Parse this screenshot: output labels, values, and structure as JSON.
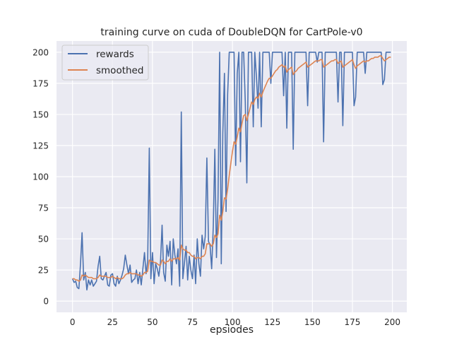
{
  "chart_data": {
    "type": "line",
    "title": "training curve on cuda of DoubleDQN for CartPole-v0",
    "xlabel": "epsiodes",
    "ylabel": "",
    "xlim": [
      -10,
      209
    ],
    "ylim": [
      -9,
      209
    ],
    "xticks": [
      0,
      25,
      50,
      75,
      100,
      125,
      150,
      175,
      200
    ],
    "yticks": [
      0,
      25,
      50,
      75,
      100,
      125,
      150,
      175,
      200
    ],
    "grid": true,
    "legend_position": "top-left",
    "colors": {
      "background": "#eaeaf2",
      "grid": "#ffffff",
      "rewards": "#4c72b0",
      "smoothed": "#dd8452"
    },
    "series": [
      {
        "name": "rewards",
        "values": [
          18,
          15,
          16,
          11,
          10,
          30,
          55,
          17,
          23,
          9,
          17,
          13,
          17,
          12,
          14,
          16,
          28,
          36,
          18,
          17,
          20,
          23,
          13,
          12,
          21,
          22,
          14,
          12,
          20,
          14,
          17,
          21,
          26,
          37,
          29,
          22,
          29,
          15,
          17,
          18,
          25,
          14,
          23,
          13,
          26,
          39,
          22,
          32,
          123,
          18,
          39,
          14,
          30,
          26,
          20,
          31,
          61,
          23,
          16,
          45,
          36,
          48,
          13,
          50,
          37,
          30,
          42,
          12,
          152,
          18,
          31,
          44,
          17,
          36,
          25,
          18,
          37,
          14,
          50,
          30,
          20,
          53,
          42,
          52,
          115,
          48,
          45,
          26,
          60,
          122,
          35,
          82,
          200,
          30,
          135,
          183,
          72,
          166,
          200,
          200,
          200,
          200,
          109,
          183,
          200,
          112,
          200,
          200,
          160,
          95,
          200,
          200,
          200,
          140,
          200,
          180,
          155,
          200,
          140,
          200,
          200,
          200,
          200,
          200,
          175,
          200,
          200,
          200,
          200,
          200,
          200,
          200,
          165,
          200,
          139,
          200,
          200,
          200,
          122,
          200,
          200,
          200,
          200,
          200,
          200,
          200,
          200,
          157,
          200,
          200,
          200,
          200,
          200,
          192,
          200,
          200,
          200,
          128,
          200,
          200,
          200,
          200,
          200,
          200,
          200,
          200,
          160,
          200,
          200,
          141,
          200,
          200,
          200,
          200,
          200,
          200,
          157,
          164,
          200,
          200,
          200,
          200,
          200,
          183,
          200,
          200,
          200,
          200,
          200,
          200,
          200,
          200,
          200,
          200,
          174,
          178,
          200,
          200,
          200,
          200
        ]
      },
      {
        "name": "smoothed",
        "values": [
          18,
          18,
          17,
          17,
          16,
          17,
          21,
          20,
          21,
          20,
          19,
          19,
          19,
          18,
          18,
          18,
          19,
          21,
          20,
          20,
          20,
          20,
          19,
          19,
          19,
          20,
          19,
          18,
          19,
          18,
          18,
          18,
          19,
          21,
          22,
          22,
          23,
          22,
          22,
          22,
          22,
          21,
          21,
          20,
          21,
          23,
          23,
          24,
          33,
          32,
          32,
          31,
          31,
          30,
          29,
          29,
          33,
          32,
          30,
          32,
          32,
          34,
          32,
          34,
          34,
          34,
          35,
          33,
          45,
          42,
          41,
          41,
          39,
          39,
          37,
          36,
          36,
          34,
          35,
          35,
          34,
          36,
          36,
          38,
          46,
          46,
          46,
          44,
          46,
          53,
          51,
          54,
          69,
          65,
          72,
          83,
          82,
          90,
          101,
          111,
          120,
          128,
          126,
          132,
          139,
          136,
          143,
          149,
          150,
          145,
          150,
          155,
          160,
          158,
          162,
          164,
          163,
          167,
          164,
          168,
          171,
          174,
          177,
          179,
          179,
          181,
          183,
          185,
          186,
          188,
          189,
          190,
          188,
          189,
          184,
          186,
          187,
          188,
          182,
          184,
          185,
          187,
          188,
          189,
          190,
          191,
          192,
          188,
          189,
          190,
          191,
          192,
          193,
          193,
          193,
          194,
          194,
          188,
          189,
          190,
          191,
          192,
          193,
          193,
          194,
          194,
          191,
          192,
          193,
          188,
          189,
          190,
          191,
          192,
          193,
          194,
          190,
          187,
          189,
          190,
          191,
          192,
          193,
          192,
          193,
          193,
          194,
          195,
          195,
          196,
          196,
          196,
          197,
          197,
          195,
          193,
          194,
          195,
          196,
          196
        ]
      }
    ]
  }
}
